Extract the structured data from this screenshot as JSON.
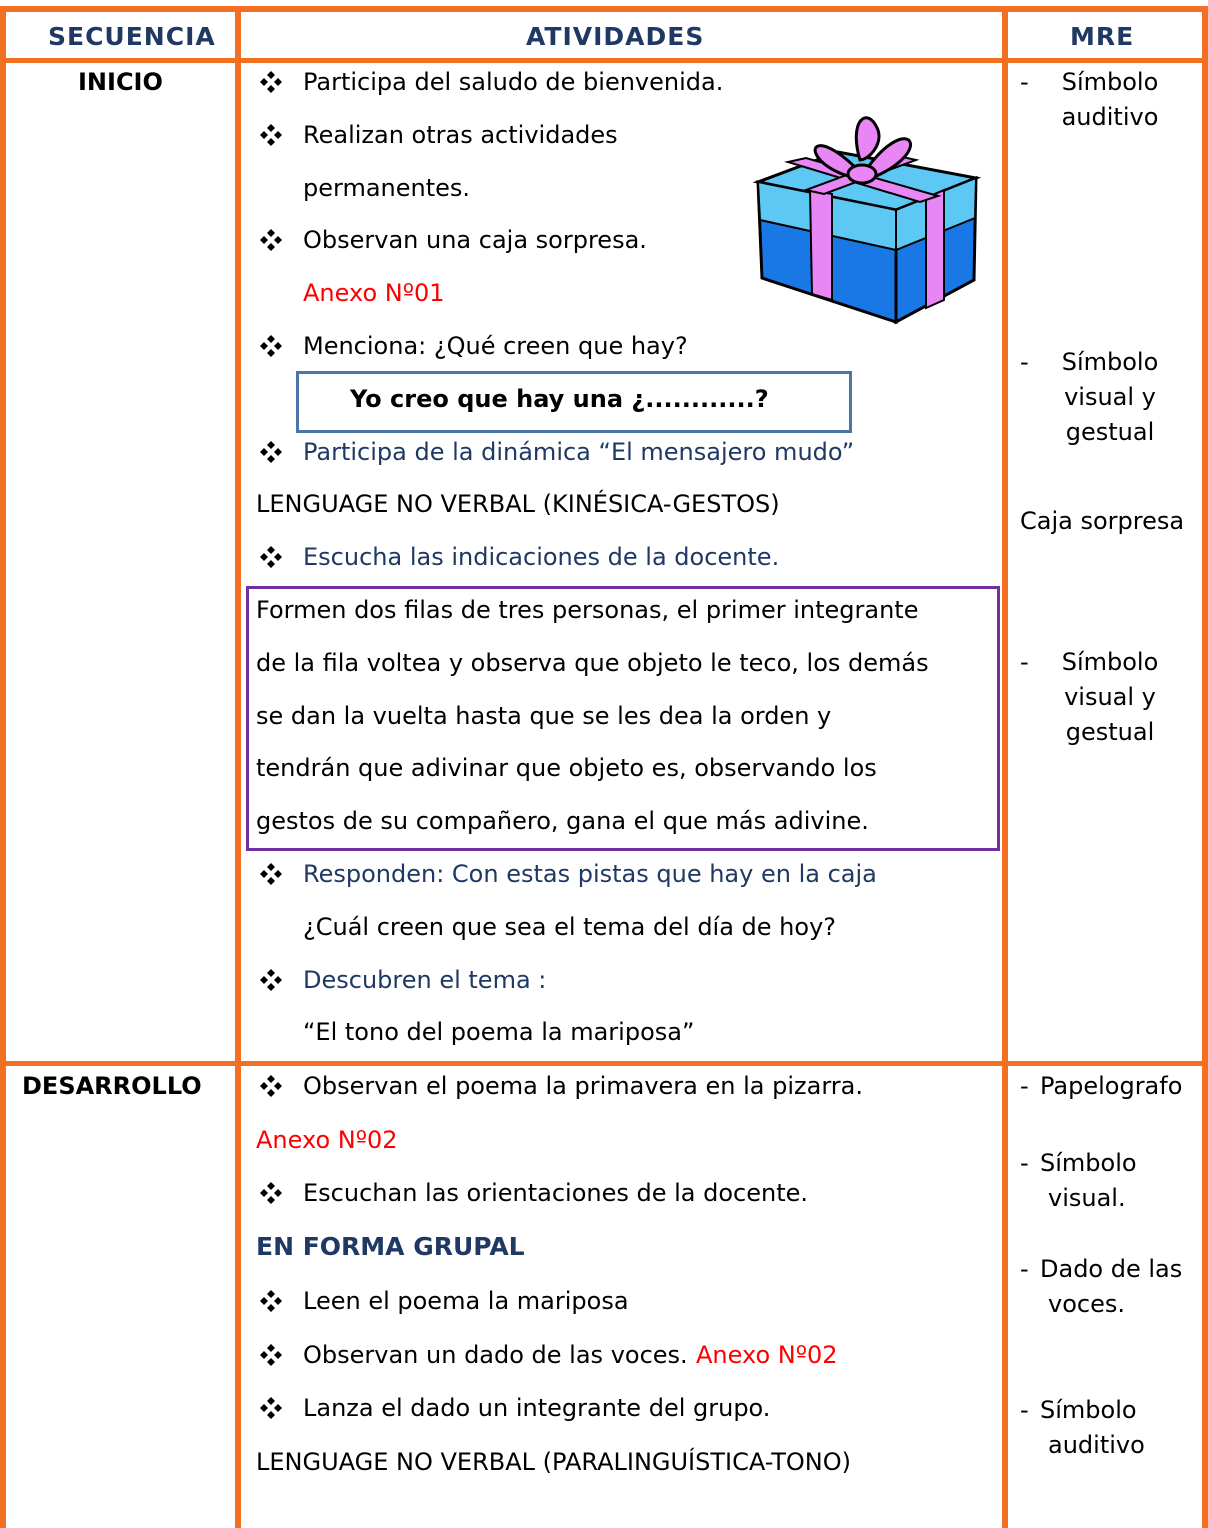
{
  "table": {
    "header": [
      "SECUENCIA",
      "ATIVIDADES",
      "MRE"
    ],
    "rows": [
      {
        "sequence": "INICIO",
        "activities": [
          {
            "kind": "bullet",
            "text": "Participa del saludo de bienvenida."
          },
          {
            "kind": "bullet",
            "text": "Realizan otras actividades"
          },
          {
            "kind": "indent",
            "text": "permanentes."
          },
          {
            "kind": "bullet",
            "text": "Observan una caja sorpresa."
          },
          {
            "kind": "indent",
            "text": "Anexo Nº01",
            "color": "#ff0000"
          },
          {
            "kind": "bullet",
            "text": "Menciona: ¿Qué creen  que hay?"
          },
          {
            "kind": "boxed",
            "text": "Yo creo que hay una ¿............?"
          },
          {
            "kind": "bullet",
            "text": "Participa de la dinámica “El mensajero mudo”",
            "color": "#1f3864"
          },
          {
            "kind": "plain",
            "text": "LENGUAGE NO VERBAL (KINÉSICA-GESTOS)"
          },
          {
            "kind": "bullet",
            "text": "Escucha las indicaciones de la docente.",
            "color": "#1f3864"
          },
          {
            "kind": "framed",
            "text": "Formen dos filas de tres personas, el primer integrante"
          },
          {
            "kind": "framed",
            "text": "de la fila voltea y observa que objeto le teco, los demás"
          },
          {
            "kind": "framed",
            "text": "se dan la vuelta hasta que se les dea la orden y"
          },
          {
            "kind": "framed",
            "text": "tendrán que adivinar que objeto es, observando los"
          },
          {
            "kind": "framed",
            "text": "gestos  de su compañero, gana el que más adivine."
          },
          {
            "kind": "bullet",
            "text": "Responden: Con estas pistas que hay en la caja",
            "color": "#1f3864"
          },
          {
            "kind": "indent",
            "text": "¿Cuál creen que sea el tema del día de hoy?"
          },
          {
            "kind": "bullet",
            "text": "Descubren el tema :",
            "color": "#1f3864"
          },
          {
            "kind": "indent",
            "text": "“El tono del poema la mariposa”"
          }
        ],
        "resources": [
          {
            "bullet": "-",
            "lines": [
              "Símbolo",
              "auditivo"
            ]
          },
          {
            "bullet": "-",
            "lines": [
              "Símbolo",
              "visual y",
              "gestual"
            ]
          },
          {
            "lines": [
              "Caja sorpresa"
            ]
          },
          {
            "bullet": "-",
            "lines": [
              "Símbolo",
              "visual y",
              "gestual"
            ]
          }
        ]
      },
      {
        "sequence": "DESARROLLO",
        "activities": [
          {
            "kind": "bullet",
            "text": "Observan el poema  la primavera en la pizarra."
          },
          {
            "kind": "plain",
            "text": "Anexo Nº02",
            "color": "#ff0000"
          },
          {
            "kind": "bullet",
            "text": "Escuchan las orientaciones  de la docente."
          },
          {
            "kind": "heading",
            "text": "EN FORMA GRUPAL",
            "color": "#1f3864"
          },
          {
            "kind": "bullet",
            "text": "Leen el poema la mariposa"
          },
          {
            "kind": "bullet",
            "text": "Observan un dado de las voces.",
            "note": "Anexo Nº02",
            "note_color": "#ff0000"
          },
          {
            "kind": "bullet",
            "text": "Lanza el dado un integrante del grupo."
          },
          {
            "kind": "plain",
            "text": "LENGUAGE NO VERBAL (PARALINGUÍSTICA-TONO)"
          }
        ],
        "resources": [
          {
            "bullet": "-",
            "lines": [
              "Papelografo"
            ]
          },
          {
            "bullet": "-",
            "lines": [
              "Símbolo",
              "visual."
            ]
          },
          {
            "bullet": "-",
            "lines": [
              "Dado de las",
              "voces."
            ]
          },
          {
            "bullet": "-",
            "lines": [
              "Símbolo",
              "auditivo"
            ]
          }
        ]
      }
    ]
  }
}
